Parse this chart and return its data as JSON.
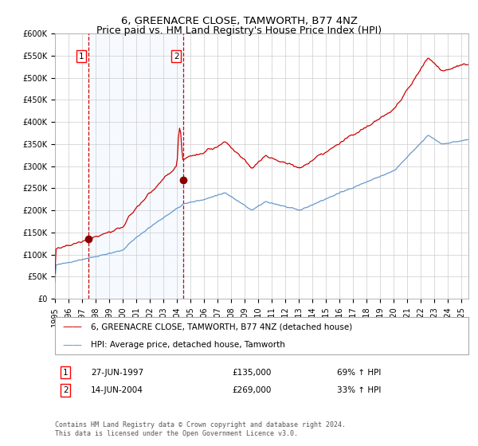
{
  "title": "6, GREENACRE CLOSE, TAMWORTH, B77 4NZ",
  "subtitle": "Price paid vs. HM Land Registry's House Price Index (HPI)",
  "legend_line1": "6, GREENACRE CLOSE, TAMWORTH, B77 4NZ (detached house)",
  "legend_line2": "HPI: Average price, detached house, Tamworth",
  "sale1_date": "27-JUN-1997",
  "sale1_price": 135000,
  "sale1_label": "69% ↑ HPI",
  "sale2_date": "14-JUN-2004",
  "sale2_price": 269000,
  "sale2_label": "33% ↑ HPI",
  "footer": "Contains HM Land Registry data © Crown copyright and database right 2024.\nThis data is licensed under the Open Government Licence v3.0.",
  "hpi_color": "#6699cc",
  "property_color": "#cc0000",
  "marker_color": "#880000",
  "shade_color": "#ddeeff",
  "dashed_color": "#cc0000",
  "grid_color": "#cccccc",
  "background_color": "#ffffff",
  "ylim": [
    0,
    600000
  ],
  "yticks": [
    0,
    50000,
    100000,
    150000,
    200000,
    250000,
    300000,
    350000,
    400000,
    450000,
    500000,
    550000,
    600000
  ],
  "sale1_year": 1997.46,
  "sale2_year": 2004.45,
  "xlim_start": 1995.0,
  "xlim_end": 2025.5,
  "title_fontsize": 9.5,
  "axis_fontsize": 7,
  "legend_fontsize": 7.5,
  "footer_fontsize": 6.0
}
